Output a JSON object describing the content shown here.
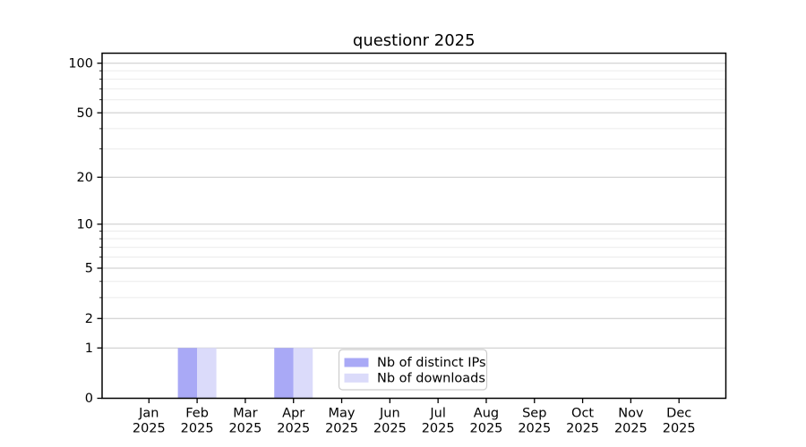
{
  "chart_data": {
    "type": "bar",
    "title": "questionr 2025",
    "categories": [
      "Jan",
      "Feb",
      "Mar",
      "Apr",
      "May",
      "Jun",
      "Jul",
      "Aug",
      "Sep",
      "Oct",
      "Nov",
      "Dec"
    ],
    "year_label": "2025",
    "series": [
      {
        "name": "Nb of distinct IPs",
        "color": "#a9a9f6",
        "values": [
          0,
          1,
          0,
          1,
          0,
          0,
          0,
          0,
          0,
          0,
          0,
          0
        ]
      },
      {
        "name": "Nb of downloads",
        "color": "#dbdbfa",
        "values": [
          0,
          1,
          0,
          1,
          0,
          0,
          0,
          0,
          0,
          0,
          0,
          0
        ]
      }
    ],
    "xlabel": "",
    "ylabel": "",
    "yscale": "log1p",
    "ylim": [
      0,
      114
    ],
    "ytick_labels": [
      0,
      1,
      2,
      5,
      10,
      20,
      50,
      100
    ],
    "y_minor_gridlines": [
      3,
      4,
      6,
      7,
      8,
      9,
      30,
      40,
      60,
      70,
      80,
      90
    ],
    "grid": true,
    "legend_position": "lower center",
    "colors": {
      "background": "#ffffff",
      "axis": "#000000",
      "major_grid": "#c8c8c8",
      "minor_grid": "#ebebeb",
      "legend_border": "#cccccc",
      "legend_background": "#ffffff",
      "text": "#000000"
    }
  }
}
